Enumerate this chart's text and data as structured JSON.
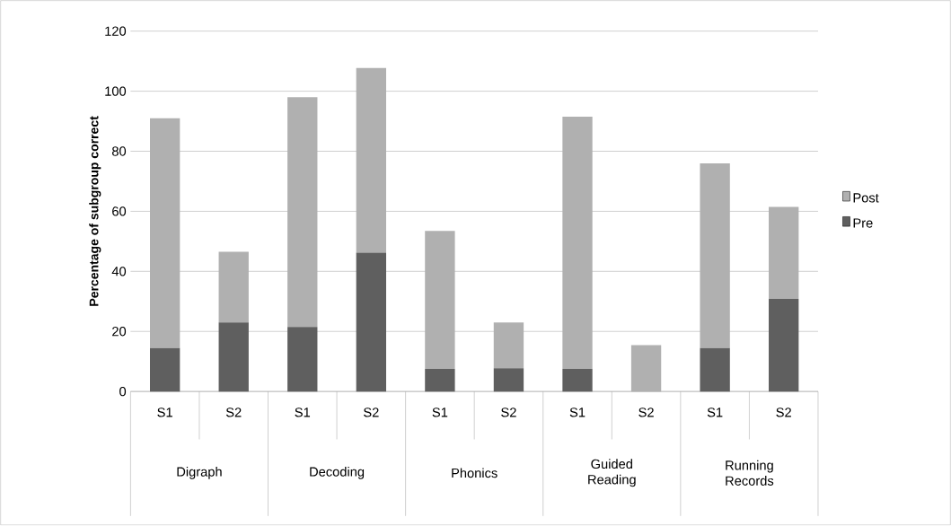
{
  "chart_data": {
    "type": "bar",
    "stacked": true,
    "ylabel": "Percentage of subgroup correct",
    "categories": [
      "S1",
      "S2",
      "S1",
      "S2",
      "S1",
      "S2",
      "S1",
      "S2",
      "S1",
      "S2"
    ],
    "series": [
      {
        "name": "Pre",
        "color": "#5f5f5f",
        "values": [
          14.5,
          23,
          21.5,
          46.2,
          7.5,
          7.7,
          7.5,
          0,
          14.5,
          30.8
        ]
      },
      {
        "name": "Post",
        "color": "#b0b0b0",
        "values": [
          76.5,
          23.5,
          76.5,
          61.5,
          46,
          15.3,
          84,
          15.4,
          61.5,
          30.7
        ]
      }
    ],
    "annotations": [
      "Digraph",
      "Decoding",
      "Phonics",
      "Guided Reading",
      "Running Records"
    ],
    "ylim": [
      0,
      120
    ],
    "yticks": [
      0,
      20,
      40,
      60,
      80,
      100,
      120
    ],
    "grid": "y",
    "legend": "right"
  }
}
